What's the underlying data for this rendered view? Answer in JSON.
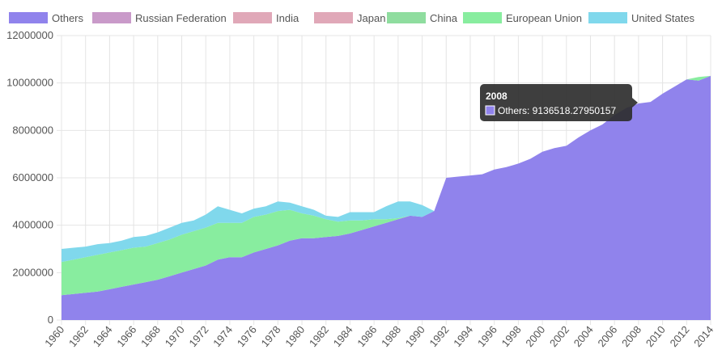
{
  "chart_data": {
    "type": "area",
    "stacked": true,
    "ylim": [
      0,
      12000000
    ],
    "yticks": [
      "0",
      "2000000",
      "4000000",
      "6000000",
      "8000000",
      "10000000",
      "12000000"
    ],
    "ytick_values": [
      0,
      2000000,
      4000000,
      6000000,
      8000000,
      10000000,
      12000000
    ],
    "xticks": [
      "1960",
      "1962",
      "1964",
      "1966",
      "1968",
      "1970",
      "1972",
      "1974",
      "1976",
      "1978",
      "1980",
      "1982",
      "1984",
      "1986",
      "1988",
      "1990",
      "1992",
      "1994",
      "1996",
      "1998",
      "2000",
      "2002",
      "2004",
      "2006",
      "2008",
      "2010",
      "2012",
      "2014"
    ],
    "grid": true,
    "legend_position": "top",
    "x": [
      1960,
      1961,
      1962,
      1963,
      1964,
      1965,
      1966,
      1967,
      1968,
      1969,
      1970,
      1971,
      1972,
      1973,
      1974,
      1975,
      1976,
      1977,
      1978,
      1979,
      1980,
      1981,
      1982,
      1983,
      1984,
      1985,
      1986,
      1987,
      1988,
      1989,
      1990,
      1991,
      1992,
      1993,
      1994,
      1995,
      1996,
      1997,
      1998,
      1999,
      2000,
      2001,
      2002,
      2003,
      2004,
      2005,
      2006,
      2007,
      2008,
      2009,
      2010,
      2011,
      2012,
      2013,
      2014
    ],
    "series": [
      {
        "name": "Others",
        "color": "#9083ec",
        "values": [
          1050000,
          1100000,
          1150000,
          1200000,
          1300000,
          1400000,
          1500000,
          1600000,
          1700000,
          1850000,
          2000000,
          2150000,
          2300000,
          2550000,
          2650000,
          2650000,
          2850000,
          3000000,
          3150000,
          3350000,
          3450000,
          3450000,
          3500000,
          3550000,
          3650000,
          3800000,
          3950000,
          4100000,
          4250000,
          4400000,
          4350000,
          4600000,
          6000000,
          6050000,
          6100000,
          6150000,
          6350000,
          6450000,
          6600000,
          6800000,
          7100000,
          7250000,
          7350000,
          7700000,
          8000000,
          8250000,
          8650000,
          8950000,
          9136518.27950157,
          9200000,
          9550000,
          9850000,
          10150000,
          10100000,
          10300000
        ]
      },
      {
        "name": "Russian Federation",
        "color": "#c99ac9",
        "values": [
          0,
          0,
          0,
          0,
          0,
          0,
          0,
          0,
          0,
          0,
          0,
          0,
          0,
          0,
          0,
          0,
          0,
          0,
          0,
          0,
          0,
          0,
          0,
          0,
          0,
          0,
          0,
          0,
          0,
          0,
          0,
          0,
          0,
          0,
          0,
          0,
          0,
          0,
          0,
          0,
          0,
          0,
          0,
          0,
          0,
          0,
          0,
          0,
          0,
          0,
          0,
          0,
          0,
          0,
          0
        ]
      },
      {
        "name": "India",
        "color": "#e0a8b8",
        "values": [
          0,
          0,
          0,
          0,
          0,
          0,
          0,
          0,
          0,
          0,
          0,
          0,
          0,
          0,
          0,
          0,
          0,
          0,
          0,
          0,
          0,
          0,
          0,
          0,
          0,
          0,
          0,
          0,
          0,
          0,
          0,
          0,
          0,
          0,
          0,
          0,
          0,
          0,
          0,
          0,
          0,
          0,
          0,
          0,
          0,
          0,
          0,
          0,
          0,
          0,
          0,
          0,
          0,
          0,
          0
        ]
      },
      {
        "name": "Japan",
        "color": "#e0a8b8",
        "values": [
          0,
          0,
          0,
          0,
          0,
          0,
          0,
          0,
          0,
          0,
          0,
          0,
          0,
          0,
          0,
          0,
          0,
          0,
          0,
          0,
          0,
          0,
          0,
          0,
          0,
          0,
          0,
          0,
          0,
          0,
          0,
          0,
          0,
          0,
          0,
          0,
          0,
          0,
          0,
          0,
          0,
          0,
          0,
          0,
          0,
          0,
          0,
          0,
          0,
          0,
          0,
          0,
          0,
          0,
          0
        ]
      },
      {
        "name": "China",
        "color": "#8fdd9f",
        "values": [
          0,
          0,
          0,
          0,
          0,
          0,
          0,
          0,
          0,
          0,
          0,
          0,
          0,
          0,
          0,
          0,
          0,
          0,
          0,
          0,
          0,
          0,
          0,
          0,
          0,
          0,
          0,
          0,
          0,
          0,
          0,
          0,
          0,
          0,
          0,
          0,
          0,
          0,
          0,
          0,
          0,
          0,
          0,
          0,
          0,
          0,
          0,
          0,
          0,
          0,
          0,
          0,
          0,
          0,
          0
        ]
      },
      {
        "name": "European Union",
        "color": "#88ed9f",
        "values": [
          1400000,
          1450000,
          1500000,
          1550000,
          1550000,
          1550000,
          1550000,
          1500000,
          1550000,
          1550000,
          1600000,
          1600000,
          1600000,
          1550000,
          1450000,
          1450000,
          1500000,
          1450000,
          1450000,
          1300000,
          1050000,
          950000,
          750000,
          600000,
          550000,
          400000,
          300000,
          150000,
          50000,
          0,
          0,
          0,
          0,
          0,
          0,
          0,
          0,
          0,
          0,
          0,
          0,
          0,
          0,
          0,
          0,
          0,
          0,
          0,
          0,
          0,
          0,
          0,
          0,
          150000,
          0
        ]
      },
      {
        "name": "United States",
        "color": "#80d8ec",
        "values": [
          550000,
          500000,
          450000,
          450000,
          400000,
          400000,
          450000,
          450000,
          450000,
          500000,
          500000,
          450000,
          550000,
          700000,
          550000,
          400000,
          350000,
          350000,
          400000,
          300000,
          300000,
          250000,
          150000,
          200000,
          350000,
          350000,
          300000,
          550000,
          700000,
          600000,
          500000,
          0,
          0,
          0,
          0,
          0,
          0,
          0,
          0,
          0,
          0,
          0,
          0,
          0,
          0,
          0,
          0,
          0,
          0,
          0,
          0,
          0,
          0,
          0,
          0
        ]
      }
    ],
    "tooltip": {
      "title": "2008",
      "label": "Others: 9136518.27950157"
    }
  }
}
